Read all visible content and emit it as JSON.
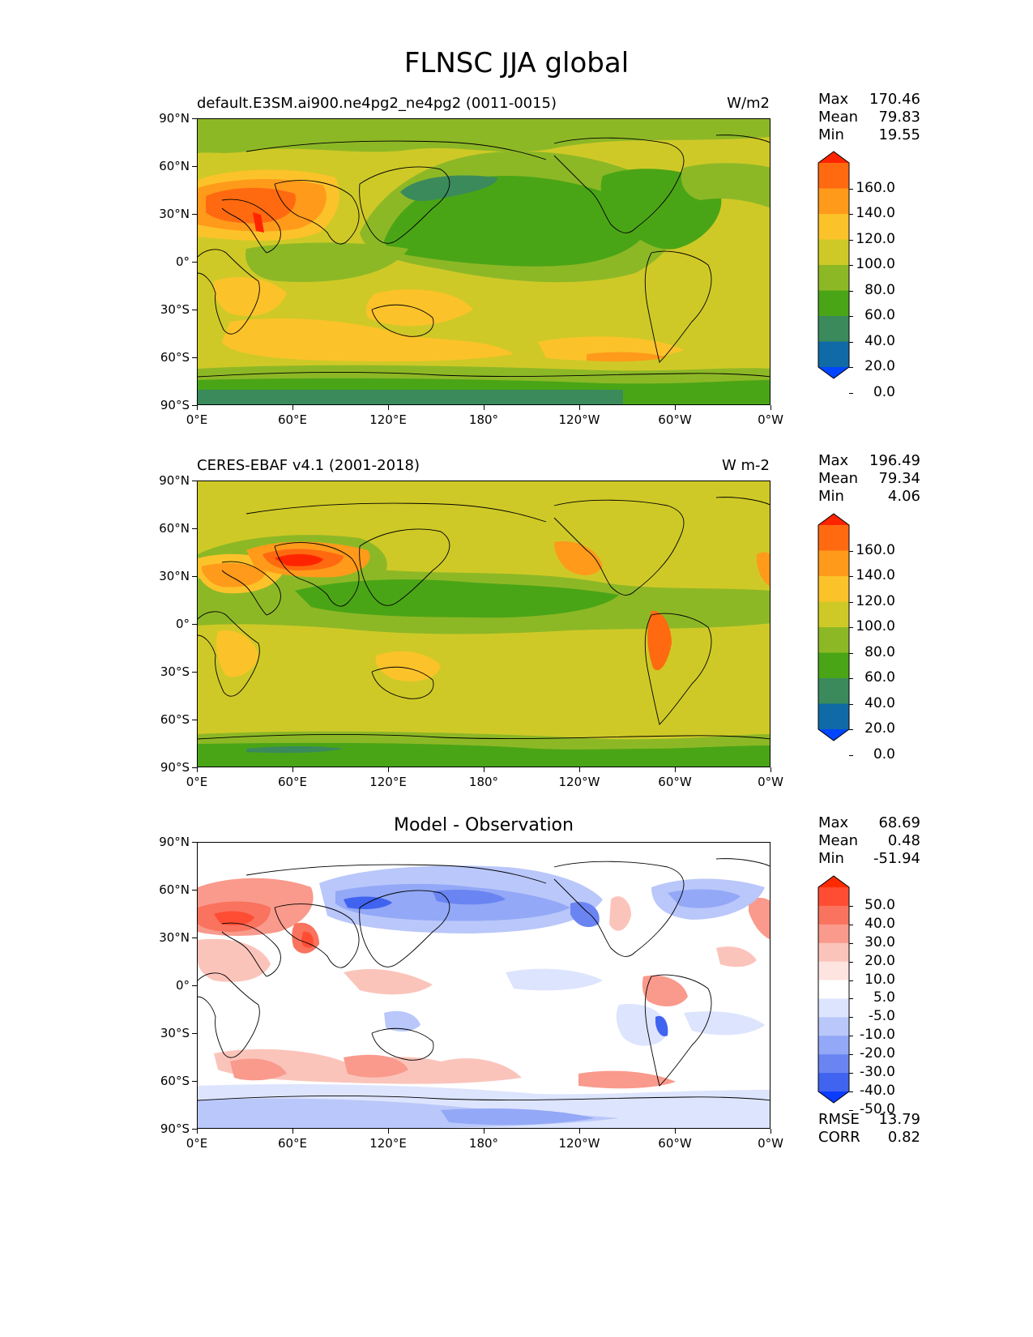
{
  "title": "FLNSC JJA global",
  "lat_ticks": [
    "90°N",
    "60°N",
    "30°N",
    "0°",
    "30°S",
    "60°S",
    "90°S"
  ],
  "lon_ticks": [
    "0°E",
    "60°E",
    "120°E",
    "180°",
    "120°W",
    "60°W",
    "0°W"
  ],
  "panels": [
    {
      "left_title": "default.E3SM.ai900.ne4pg2_ne4pg2 (0011-0015)",
      "right_title": "W/m2",
      "center_title": "",
      "stats": [
        [
          "Max",
          "170.46"
        ],
        [
          "Mean",
          "79.83"
        ],
        [
          "Min",
          "19.55"
        ]
      ],
      "extra_stats": [],
      "colorbar": {
        "labels": [
          "160.0",
          "140.0",
          "120.0",
          "100.0",
          "80.0",
          "60.0",
          "40.0",
          "20.0",
          "0.0"
        ],
        "colors": [
          "#ff2400",
          "#ff6a10",
          "#ff9a1a",
          "#fcc22a",
          "#cfc927",
          "#8db826",
          "#4aa516",
          "#3a8a5c",
          "#0f6aa5",
          "#0045ff"
        ]
      }
    },
    {
      "left_title": "CERES-EBAF v4.1 (2001-2018)",
      "right_title": "W m-2",
      "center_title": "",
      "stats": [
        [
          "Max",
          "196.49"
        ],
        [
          "Mean",
          "79.34"
        ],
        [
          "Min",
          "4.06"
        ]
      ],
      "extra_stats": [],
      "colorbar": {
        "labels": [
          "160.0",
          "140.0",
          "120.0",
          "100.0",
          "80.0",
          "60.0",
          "40.0",
          "20.0",
          "0.0"
        ],
        "colors": [
          "#ff2400",
          "#ff6a10",
          "#ff9a1a",
          "#fcc22a",
          "#cfc927",
          "#8db826",
          "#4aa516",
          "#3a8a5c",
          "#0f6aa5",
          "#0045ff"
        ]
      }
    },
    {
      "left_title": "",
      "right_title": "",
      "center_title": "Model - Observation",
      "stats": [
        [
          "Max",
          "68.69"
        ],
        [
          "Mean",
          "0.48"
        ],
        [
          "Min",
          "-51.94"
        ]
      ],
      "extra_stats": [
        [
          "RMSE",
          "13.79"
        ],
        [
          "CORR",
          "0.82"
        ]
      ],
      "colorbar": {
        "labels": [
          "50.0",
          "40.0",
          "30.0",
          "20.0",
          "10.0",
          "5.0",
          "-5.0",
          "-10.0",
          "-20.0",
          "-30.0",
          "-40.0",
          "-50.0"
        ],
        "colors": [
          "#ff2a00",
          "#ff4d33",
          "#f9735f",
          "#f99a8c",
          "#fbc4bb",
          "#fde4e0",
          "#ffffff",
          "#dde4fd",
          "#b9c7fa",
          "#93a8f6",
          "#6a85f2",
          "#4063f0",
          "#0c3cff"
        ]
      }
    }
  ]
}
